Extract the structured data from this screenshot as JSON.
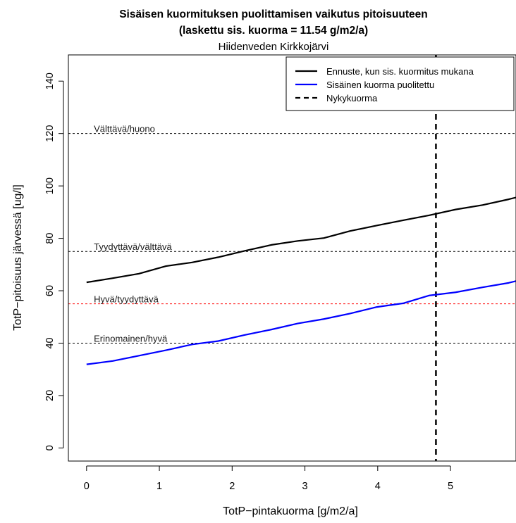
{
  "chart_data": {
    "type": "line",
    "title": "Sisäisen kuormituksen puolittamisen vaikutus pitoisuuteen",
    "title_line2": "(laskettu sis. kuorma = 11.54 g/m2/a)",
    "subtitle": "Hiidenveden Kirkkojärvi",
    "xlabel": "TotP−pintakuorma [g/m2/a]",
    "ylabel": "TotP−pitoisuus järvessä [ug/l]",
    "xlim": [
      -0.25,
      5.9
    ],
    "ylim": [
      -5,
      150
    ],
    "xticks": [
      "0",
      "1",
      "2",
      "3",
      "4",
      "5"
    ],
    "yticks": [
      "0",
      "20",
      "40",
      "60",
      "80",
      "100",
      "120",
      "140"
    ],
    "grid": false,
    "legend_position": "top-right",
    "series": [
      {
        "name": "Ennuste, kun sis. kuormitus mukana",
        "color": "#000000",
        "x": [
          0,
          0.36,
          0.72,
          1.09,
          1.45,
          1.81,
          2.17,
          2.54,
          2.9,
          3.26,
          3.62,
          3.99,
          4.35,
          4.71,
          5.07,
          5.44,
          5.8,
          5.9
        ],
        "y": [
          63.2,
          64.8,
          66.5,
          69.4,
          70.8,
          72.8,
          75.2,
          77.5,
          79.0,
          80.1,
          82.8,
          84.9,
          86.9,
          88.8,
          91.0,
          92.7,
          94.9,
          95.6
        ]
      },
      {
        "name": "Sisäinen kuorma puolitettu",
        "color": "#0000ff",
        "x": [
          0,
          0.36,
          0.72,
          1.09,
          1.45,
          1.81,
          2.17,
          2.54,
          2.9,
          3.26,
          3.62,
          3.99,
          4.35,
          4.71,
          5.07,
          5.44,
          5.8,
          5.9
        ],
        "y": [
          31.9,
          33.2,
          35.2,
          37.3,
          39.5,
          40.8,
          43.1,
          45.2,
          47.5,
          49.2,
          51.3,
          53.8,
          55.2,
          58.2,
          59.4,
          61.3,
          63.0,
          63.7
        ]
      }
    ],
    "vline": {
      "name": "Nykykuorma",
      "x": 4.8,
      "color": "#000000",
      "style": "dashed"
    },
    "reference_lines": [
      {
        "label": "Välttävä/huono",
        "y": 120,
        "color": "#000000"
      },
      {
        "label": "Tyydyttävä/välttävä",
        "y": 75,
        "color": "#000000"
      },
      {
        "label": "Hyvä/tyydyttävä",
        "y": 55,
        "color": "#ff0000"
      },
      {
        "label": "Erinomainen/hyvä",
        "y": 40,
        "color": "#000000"
      }
    ],
    "legend": [
      {
        "label": "Ennuste, kun sis. kuormitus mukana",
        "color": "#000000",
        "style": "solid"
      },
      {
        "label": "Sisäinen kuorma puolitettu",
        "color": "#0000ff",
        "style": "solid"
      },
      {
        "label": "Nykykuorma",
        "color": "#000000",
        "style": "dashed"
      }
    ]
  }
}
